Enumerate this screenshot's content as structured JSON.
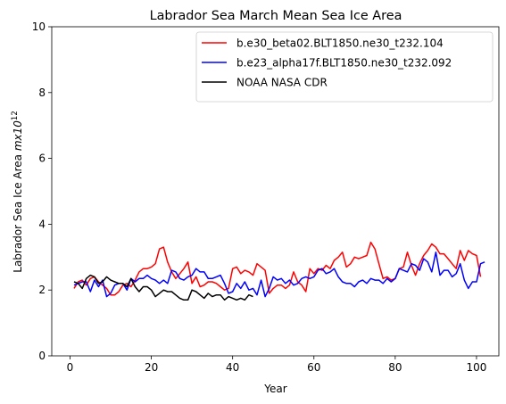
{
  "chart_data": {
    "type": "line",
    "title": "Labrador Sea March Mean Sea Ice Area",
    "xlabel": "Year",
    "ylabel_main": "Labrador Sea Ice Area ",
    "ylabel_unit": "mx10",
    "ylabel_exp": "12",
    "xlim": [
      -4.5,
      105.5
    ],
    "ylim": [
      0,
      10
    ],
    "xticks": [
      0,
      20,
      40,
      60,
      80,
      100
    ],
    "yticks": [
      0,
      2,
      4,
      6,
      8,
      10
    ],
    "legend_position": "top-right",
    "grid": false,
    "series": [
      {
        "name": "b.e30_beta02.BLT1850.ne30_t232.104",
        "color": "#ff0000",
        "x_start": 1,
        "values": [
          2.05,
          2.25,
          2.3,
          2.15,
          2.35,
          2.4,
          2.25,
          2.15,
          2.05,
          1.85,
          1.85,
          1.95,
          2.15,
          2.2,
          2.1,
          2.3,
          2.55,
          2.65,
          2.65,
          2.7,
          2.8,
          3.25,
          3.3,
          2.85,
          2.55,
          2.35,
          2.5,
          2.65,
          2.85,
          2.2,
          2.4,
          2.1,
          2.15,
          2.25,
          2.25,
          2.2,
          2.1,
          2.0,
          2.05,
          2.65,
          2.7,
          2.5,
          2.6,
          2.55,
          2.45,
          2.8,
          2.7,
          2.6,
          1.9,
          2.05,
          2.15,
          2.15,
          2.05,
          2.15,
          2.55,
          2.25,
          2.15,
          1.95,
          2.65,
          2.5,
          2.65,
          2.6,
          2.75,
          2.65,
          2.9,
          3.0,
          3.15,
          2.7,
          2.8,
          3.0,
          2.95,
          3.0,
          3.05,
          3.45,
          3.25,
          2.8,
          2.35,
          2.4,
          2.3,
          2.35,
          2.65,
          2.7,
          3.15,
          2.75,
          2.45,
          2.8,
          3.05,
          3.2,
          3.4,
          3.3,
          3.1,
          3.1,
          2.95,
          2.8,
          2.65,
          3.2,
          2.9,
          3.2,
          3.1,
          3.05,
          2.4
        ]
      },
      {
        "name": "b.e23_alpha17f.BLT1850.ne30_t232.092",
        "color": "#0000ff",
        "x_start": 1,
        "values": [
          2.15,
          2.2,
          2.25,
          2.25,
          1.95,
          2.3,
          2.1,
          2.3,
          1.8,
          1.9,
          2.15,
          2.2,
          2.2,
          2.0,
          2.35,
          2.25,
          2.35,
          2.35,
          2.45,
          2.35,
          2.3,
          2.2,
          2.3,
          2.2,
          2.6,
          2.55,
          2.35,
          2.3,
          2.4,
          2.45,
          2.65,
          2.55,
          2.55,
          2.35,
          2.35,
          2.4,
          2.45,
          2.2,
          1.9,
          1.95,
          2.2,
          2.05,
          2.25,
          2.0,
          2.05,
          1.85,
          2.3,
          1.8,
          2.05,
          2.4,
          2.3,
          2.35,
          2.2,
          2.3,
          2.15,
          2.2,
          2.35,
          2.4,
          2.35,
          2.4,
          2.6,
          2.65,
          2.5,
          2.55,
          2.65,
          2.4,
          2.25,
          2.2,
          2.2,
          2.1,
          2.25,
          2.3,
          2.2,
          2.35,
          2.3,
          2.3,
          2.2,
          2.35,
          2.25,
          2.35,
          2.65,
          2.6,
          2.55,
          2.8,
          2.75,
          2.6,
          2.95,
          2.85,
          2.55,
          3.15,
          2.45,
          2.6,
          2.6,
          2.4,
          2.5,
          2.8,
          2.3,
          2.05,
          2.25,
          2.25,
          2.8,
          2.85
        ]
      },
      {
        "name": "NOAA NASA CDR",
        "color": "#000000",
        "x_start": 1,
        "values": [
          2.25,
          2.2,
          2.05,
          2.35,
          2.45,
          2.4,
          2.2,
          2.25,
          2.4,
          2.3,
          2.25,
          2.2,
          2.2,
          2.1,
          2.35,
          2.1,
          1.95,
          2.1,
          2.1,
          2.0,
          1.8,
          1.9,
          2.0,
          1.95,
          1.95,
          1.85,
          1.75,
          1.7,
          1.7,
          2.0,
          1.95,
          1.85,
          1.75,
          1.9,
          1.8,
          1.85,
          1.85,
          1.7,
          1.8,
          1.75,
          1.7,
          1.75,
          1.7,
          1.85,
          1.8
        ]
      }
    ]
  }
}
